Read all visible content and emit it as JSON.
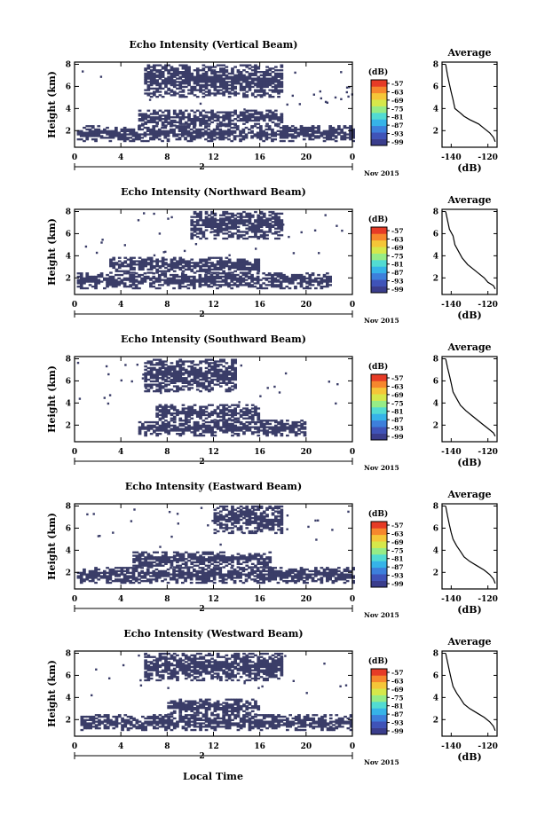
{
  "figure": {
    "xlabel": "Local Time",
    "colors": {
      "echo": "#3a3d68",
      "line": "#000000"
    }
  },
  "colorbar": {
    "label": "(dB)",
    "ticks": [
      "-57",
      "-63",
      "-69",
      "-75",
      "-81",
      "-87",
      "-93",
      "-99"
    ],
    "colors": [
      "#3a3d8c",
      "#3f53b8",
      "#3d7fdb",
      "#36b3e8",
      "#52dbd2",
      "#96ec86",
      "#d6e84a",
      "#f5c638",
      "#f6872d",
      "#e63b26"
    ]
  },
  "chart_data": [
    {
      "type": "heatmap",
      "title": "Echo Intensity (Vertical Beam)",
      "ylabel": "Height (km)",
      "xticks": [
        "0",
        "4",
        "8",
        "12",
        "16",
        "20",
        "0"
      ],
      "yticks": [
        "2",
        "4",
        "6",
        "8"
      ],
      "date_label": "Nov 2015",
      "day_marker": "2",
      "xlim": [
        0,
        24
      ],
      "ylim": [
        0.5,
        8.2
      ],
      "regions": [
        {
          "x0": 0.2,
          "x1": 24,
          "y0": 1.0,
          "y1": 2.4
        },
        {
          "x0": 5.5,
          "x1": 18,
          "y0": 2.4,
          "y1": 3.8
        },
        {
          "x0": 6,
          "x1": 18,
          "y0": 5.0,
          "y1": 8.0
        }
      ],
      "profile": {
        "title": "Average",
        "xlabel": "(dB)",
        "xticks": [
          "-140",
          "-120"
        ],
        "yticks": [
          "2",
          "4",
          "6",
          "8"
        ],
        "xlim": [
          -145,
          -115
        ],
        "ylim": [
          0.5,
          8.2
        ],
        "x": [
          -143,
          -142,
          -141,
          -140,
          -139,
          -138,
          -135,
          -133,
          -130,
          -125,
          -122,
          -119,
          -117,
          -116
        ],
        "y": [
          8.0,
          7.0,
          6.2,
          5.5,
          4.8,
          4.0,
          3.6,
          3.3,
          3.0,
          2.6,
          2.2,
          1.8,
          1.4,
          1.0
        ]
      }
    },
    {
      "type": "heatmap",
      "title": "Echo Intensity (Northward Beam)",
      "ylabel": "Height (km)",
      "xticks": [
        "0",
        "4",
        "8",
        "12",
        "16",
        "20",
        "0"
      ],
      "yticks": [
        "2",
        "4",
        "6",
        "8"
      ],
      "date_label": "Nov 2015",
      "day_marker": "2",
      "xlim": [
        0,
        24
      ],
      "ylim": [
        0.5,
        8.2
      ],
      "regions": [
        {
          "x0": 0.2,
          "x1": 22,
          "y0": 1.0,
          "y1": 2.4
        },
        {
          "x0": 3,
          "x1": 16,
          "y0": 2.4,
          "y1": 3.8
        },
        {
          "x0": 10,
          "x1": 18,
          "y0": 5.5,
          "y1": 8.0
        }
      ],
      "profile": {
        "title": "Average",
        "xlabel": "(dB)",
        "xticks": [
          "-140",
          "-120"
        ],
        "yticks": [
          "2",
          "4",
          "6",
          "8"
        ],
        "xlim": [
          -145,
          -115
        ],
        "ylim": [
          0.5,
          8.2
        ],
        "x": [
          -143,
          -142,
          -141,
          -139,
          -138,
          -136,
          -134,
          -131,
          -128,
          -125,
          -122,
          -120,
          -117,
          -116
        ],
        "y": [
          8.0,
          7.2,
          6.4,
          5.8,
          5.0,
          4.4,
          3.8,
          3.2,
          2.8,
          2.4,
          2.0,
          1.6,
          1.3,
          1.0
        ]
      }
    },
    {
      "type": "heatmap",
      "title": "Echo Intensity (Southward Beam)",
      "ylabel": "Height (km)",
      "xticks": [
        "0",
        "4",
        "8",
        "12",
        "16",
        "20",
        "0"
      ],
      "yticks": [
        "2",
        "4",
        "6",
        "8"
      ],
      "date_label": "Nov 2015",
      "day_marker": "2",
      "xlim": [
        0,
        24
      ],
      "ylim": [
        0.5,
        8.2
      ],
      "regions": [
        {
          "x0": 5.5,
          "x1": 20,
          "y0": 1.0,
          "y1": 2.4
        },
        {
          "x0": 7,
          "x1": 16,
          "y0": 2.4,
          "y1": 3.8
        },
        {
          "x0": 6,
          "x1": 14,
          "y0": 5.0,
          "y1": 8.0
        }
      ],
      "profile": {
        "title": "Average",
        "xlabel": "(dB)",
        "xticks": [
          "-140",
          "-120"
        ],
        "yticks": [
          "2",
          "4",
          "6",
          "8"
        ],
        "xlim": [
          -145,
          -115
        ],
        "ylim": [
          0.5,
          8.2
        ],
        "x": [
          -143,
          -142,
          -141,
          -140,
          -139,
          -137,
          -135,
          -132,
          -129,
          -126,
          -123,
          -120,
          -117,
          -116
        ],
        "y": [
          8.0,
          7.2,
          6.5,
          5.8,
          5.0,
          4.4,
          3.8,
          3.3,
          2.9,
          2.5,
          2.1,
          1.7,
          1.3,
          1.0
        ]
      }
    },
    {
      "type": "heatmap",
      "title": "Echo Intensity (Eastward Beam)",
      "ylabel": "Height (km)",
      "xticks": [
        "0",
        "4",
        "8",
        "12",
        "16",
        "20",
        "0"
      ],
      "yticks": [
        "2",
        "4",
        "6",
        "8"
      ],
      "date_label": "Nov 2015",
      "day_marker": "2",
      "xlim": [
        0,
        24
      ],
      "ylim": [
        0.5,
        8.2
      ],
      "regions": [
        {
          "x0": 0.2,
          "x1": 24,
          "y0": 1.0,
          "y1": 2.4
        },
        {
          "x0": 5,
          "x1": 17,
          "y0": 2.4,
          "y1": 3.8
        },
        {
          "x0": 12,
          "x1": 18,
          "y0": 5.5,
          "y1": 8.0
        }
      ],
      "profile": {
        "title": "Average",
        "xlabel": "(dB)",
        "xticks": [
          "-140",
          "-120"
        ],
        "yticks": [
          "2",
          "4",
          "6",
          "8"
        ],
        "xlim": [
          -145,
          -115
        ],
        "ylim": [
          0.5,
          8.2
        ],
        "x": [
          -143,
          -142,
          -141,
          -140,
          -139,
          -137,
          -135,
          -133,
          -130,
          -126,
          -122,
          -119,
          -117,
          -116
        ],
        "y": [
          8.0,
          7.1,
          6.3,
          5.6,
          5.0,
          4.4,
          3.9,
          3.4,
          3.0,
          2.6,
          2.2,
          1.8,
          1.4,
          1.0
        ]
      }
    },
    {
      "type": "heatmap",
      "title": "Echo Intensity (Westward Beam)",
      "ylabel": "Height (km)",
      "xticks": [
        "0",
        "4",
        "8",
        "12",
        "16",
        "20",
        "0"
      ],
      "yticks": [
        "2",
        "4",
        "6",
        "8"
      ],
      "date_label": "Nov 2015",
      "day_marker": "2",
      "xlim": [
        0,
        24
      ],
      "ylim": [
        0.5,
        8.2
      ],
      "regions": [
        {
          "x0": 0.5,
          "x1": 24,
          "y0": 1.0,
          "y1": 2.4
        },
        {
          "x0": 8,
          "x1": 16,
          "y0": 2.4,
          "y1": 3.8
        },
        {
          "x0": 6,
          "x1": 18,
          "y0": 5.5,
          "y1": 8.0
        }
      ],
      "profile": {
        "title": "Average",
        "xlabel": "(dB)",
        "xticks": [
          "-140",
          "-120"
        ],
        "yticks": [
          "2",
          "4",
          "6",
          "8"
        ],
        "xlim": [
          -145,
          -115
        ],
        "ylim": [
          0.5,
          8.2
        ],
        "x": [
          -143,
          -142,
          -141,
          -140,
          -139,
          -137,
          -135,
          -133,
          -130,
          -126,
          -122,
          -119,
          -117,
          -116
        ],
        "y": [
          8.0,
          7.2,
          6.4,
          5.7,
          5.0,
          4.4,
          3.9,
          3.4,
          3.0,
          2.6,
          2.2,
          1.8,
          1.4,
          1.0
        ]
      }
    }
  ]
}
